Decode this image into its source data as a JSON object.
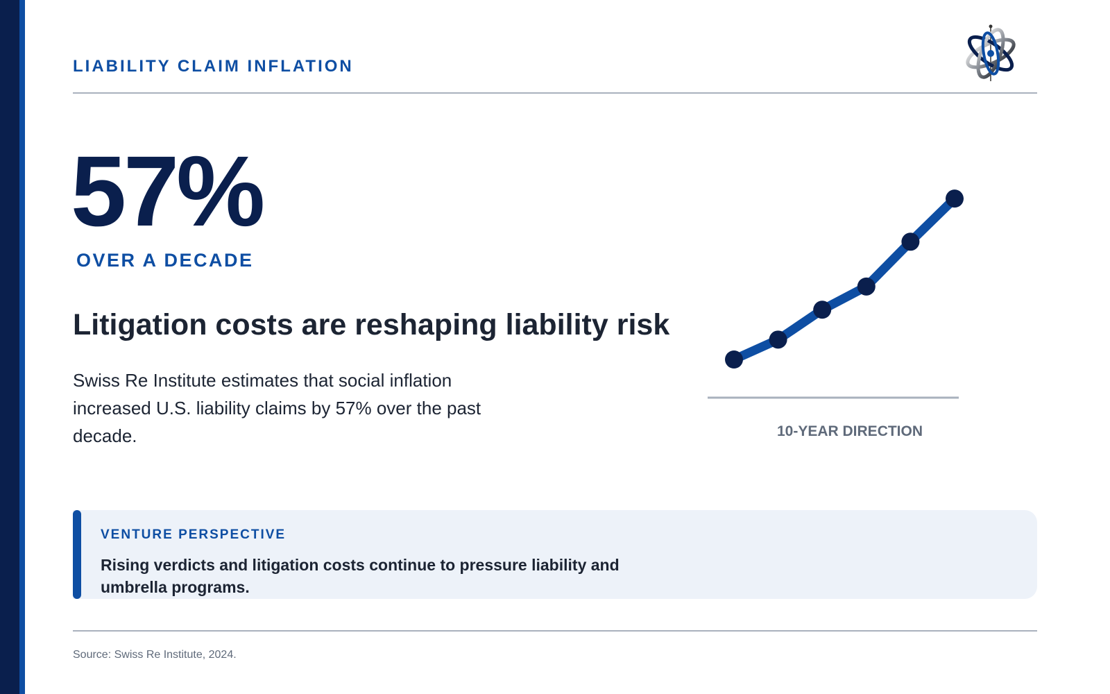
{
  "header": {
    "section_label": "LIABILITY CLAIM INFLATION",
    "logo_icon": "globe-orbit-logo"
  },
  "stat": {
    "value": "57%",
    "subtitle": "OVER A DECADE"
  },
  "headline": "Litigation costs are reshaping liability risk",
  "body": "Swiss Re Institute estimates that social inflation increased U.S. liability claims by 57% over the past decade.",
  "chart_data": {
    "type": "line",
    "caption": "10-YEAR DIRECTION",
    "series": [
      {
        "values": [
          0,
          0.12,
          0.3,
          0.44,
          0.71,
          0.97
        ]
      }
    ],
    "ylim": [
      0,
      1
    ],
    "grid": false,
    "axis_labels_shown": false
  },
  "callout": {
    "label": "VENTURE PERSPECTIVE",
    "text": "Rising verdicts and litigation costs continue to pressure liability and umbrella programs."
  },
  "footer": {
    "source": "Source: Swiss Re Institute, 2024."
  },
  "colors": {
    "navy": "#0a1f4d",
    "accent_blue": "#0e4ea3",
    "text": "#1c2433",
    "muted": "#5f6a7a",
    "callout_bg": "#edf2f9"
  }
}
